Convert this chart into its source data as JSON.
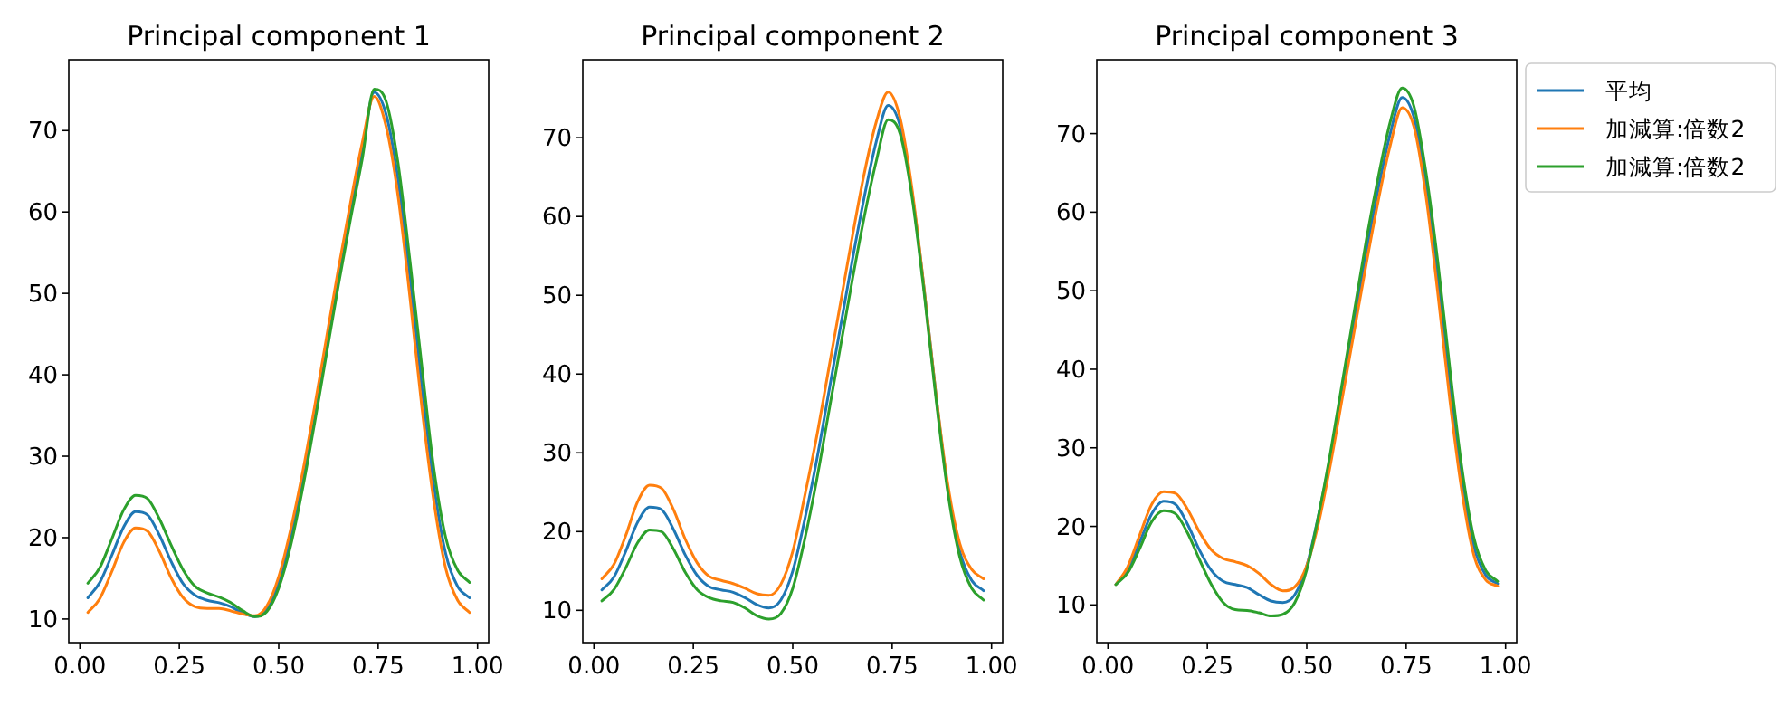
{
  "chart_data": [
    {
      "type": "line",
      "title": "Principal component 1",
      "x": [
        0.02,
        0.05,
        0.08,
        0.11,
        0.14,
        0.17,
        0.2,
        0.23,
        0.26,
        0.29,
        0.32,
        0.35,
        0.38,
        0.41,
        0.44,
        0.47,
        0.5,
        0.53,
        0.56,
        0.59,
        0.62,
        0.65,
        0.68,
        0.71,
        0.74,
        0.77,
        0.8,
        0.83,
        0.86,
        0.89,
        0.92,
        0.95,
        0.98
      ],
      "series": [
        {
          "color": "#1f77b4",
          "values": [
            12.6,
            14.5,
            17.8,
            21.3,
            23.2,
            22.8,
            20.3,
            17,
            14.3,
            12.9,
            12.3,
            12,
            11.5,
            10.7,
            10.3,
            11.2,
            14.5,
            20,
            27,
            35,
            43.5,
            52,
            60,
            67.5,
            74.7,
            72,
            64,
            52,
            38.5,
            26.5,
            18,
            14,
            12.6
          ]
        },
        {
          "color": "#ff7f0e",
          "values": [
            10.8,
            12.5,
            15.8,
            19.4,
            21.2,
            20.8,
            18.3,
            15,
            12.6,
            11.5,
            11.3,
            11.3,
            11,
            10.6,
            10.4,
            11.6,
            15.2,
            21,
            28,
            36,
            44.5,
            53,
            61,
            68.5,
            74.2,
            70.5,
            62,
            49.5,
            36,
            24.5,
            16.2,
            12.3,
            10.8
          ]
        },
        {
          "color": "#2ca02c",
          "values": [
            14.4,
            16.3,
            19.8,
            23.4,
            25.2,
            24.8,
            22.3,
            19,
            16,
            14,
            13.2,
            12.7,
            12,
            11,
            10.3,
            10.9,
            13.8,
            19,
            26,
            34,
            42.5,
            51,
            59,
            66.5,
            75.1,
            73.6,
            66,
            54,
            41,
            28.5,
            20,
            16,
            14.5
          ]
        }
      ],
      "xlim": [
        -0.028,
        1.028
      ],
      "ylim": [
        7.1,
        78.7
      ],
      "xticks": [
        {
          "value": 0,
          "label": "0.00"
        },
        {
          "value": 0.25,
          "label": "0.25"
        },
        {
          "value": 0.5,
          "label": "0.50"
        },
        {
          "value": 0.75,
          "label": "0.75"
        },
        {
          "value": 1,
          "label": "1.00"
        }
      ],
      "yticks": [
        10,
        20,
        30,
        40,
        50,
        60,
        70
      ]
    },
    {
      "type": "line",
      "title": "Principal component 2",
      "x": [
        0.02,
        0.05,
        0.08,
        0.11,
        0.14,
        0.17,
        0.2,
        0.23,
        0.26,
        0.29,
        0.32,
        0.35,
        0.38,
        0.41,
        0.44,
        0.47,
        0.5,
        0.53,
        0.56,
        0.59,
        0.62,
        0.65,
        0.68,
        0.71,
        0.74,
        0.77,
        0.8,
        0.83,
        0.86,
        0.89,
        0.92,
        0.95,
        0.98
      ],
      "series": [
        {
          "color": "#1f77b4",
          "values": [
            12.6,
            14.2,
            17.5,
            21.2,
            23.1,
            22.8,
            20.3,
            17,
            14.4,
            13,
            12.6,
            12.3,
            11.6,
            10.7,
            10.3,
            11.3,
            15,
            21.5,
            29,
            37.5,
            46,
            54.5,
            62.5,
            69.5,
            74.1,
            71.5,
            63,
            51,
            37.5,
            25.5,
            17.5,
            13.8,
            12.5
          ]
        },
        {
          "color": "#ff7f0e",
          "values": [
            14,
            15.8,
            19.5,
            23.8,
            25.9,
            25.5,
            22.8,
            19,
            16,
            14.3,
            13.8,
            13.4,
            12.8,
            12.1,
            11.9,
            13.3,
            17.5,
            24.5,
            32,
            40.5,
            49,
            57.5,
            65.5,
            72,
            75.8,
            72.5,
            63.5,
            51,
            37.5,
            26,
            18.5,
            15.2,
            14
          ]
        },
        {
          "color": "#2ca02c",
          "values": [
            11.2,
            12.6,
            15.4,
            18.6,
            20.2,
            20,
            17.8,
            14.8,
            12.6,
            11.6,
            11.2,
            11,
            10.3,
            9.3,
            8.9,
            9.6,
            12.8,
            19,
            26.5,
            35,
            43.5,
            52,
            60,
            67,
            72.3,
            70.5,
            62.5,
            50.5,
            37,
            25,
            16.8,
            12.8,
            11.3
          ]
        }
      ],
      "xlim": [
        -0.028,
        1.028
      ],
      "ylim": [
        5.9,
        79.9
      ],
      "xticks": [
        {
          "value": 0,
          "label": "0.00"
        },
        {
          "value": 0.25,
          "label": "0.25"
        },
        {
          "value": 0.5,
          "label": "0.50"
        },
        {
          "value": 0.75,
          "label": "0.75"
        },
        {
          "value": 1,
          "label": "1.00"
        }
      ],
      "yticks": [
        10,
        20,
        30,
        40,
        50,
        60,
        70
      ]
    },
    {
      "type": "line",
      "title": "Principal component 3",
      "legend": "top right",
      "x": [
        0.02,
        0.05,
        0.08,
        0.11,
        0.14,
        0.17,
        0.2,
        0.23,
        0.26,
        0.29,
        0.32,
        0.35,
        0.38,
        0.41,
        0.44,
        0.47,
        0.5,
        0.53,
        0.56,
        0.59,
        0.62,
        0.65,
        0.68,
        0.71,
        0.74,
        0.77,
        0.8,
        0.83,
        0.86,
        0.89,
        0.92,
        0.95,
        0.98
      ],
      "series": [
        {
          "name": "平均",
          "color": "#1f77b4",
          "values": [
            12.6,
            14.5,
            18,
            21.6,
            23.2,
            22.8,
            20.3,
            17,
            14.4,
            13,
            12.6,
            12.2,
            11.3,
            10.5,
            10.3,
            11.3,
            15,
            21.5,
            29,
            37.5,
            46.5,
            55,
            63,
            70,
            74.6,
            72,
            63.5,
            51.5,
            38,
            26,
            17.5,
            13.8,
            12.7
          ]
        },
        {
          "name": "加減算:倍数2",
          "color": "#ff7f0e",
          "values": [
            12.6,
            14.9,
            18.9,
            22.8,
            24.4,
            24.2,
            22.2,
            19.3,
            17,
            15.9,
            15.5,
            15,
            14,
            12.6,
            11.8,
            12.3,
            15,
            20.5,
            28,
            36.5,
            45,
            53.5,
            61.5,
            68.5,
            73.3,
            70.8,
            62,
            49.5,
            36,
            24.5,
            16.4,
            13.2,
            12.4
          ]
        },
        {
          "name": "加減算:倍数2",
          "color": "#2ca02c",
          "values": [
            12.6,
            14.1,
            17.2,
            20.6,
            22,
            21.6,
            19.2,
            15.8,
            12.6,
            10.3,
            9.4,
            9.3,
            9,
            8.6,
            8.8,
            10.3,
            14.5,
            21.5,
            29.5,
            38.5,
            47.5,
            56.5,
            64.5,
            71.5,
            75.8,
            73.4,
            65,
            53.5,
            40,
            27.5,
            18.6,
            14.4,
            13
          ]
        }
      ],
      "xlim": [
        -0.028,
        1.028
      ],
      "ylim": [
        5.2,
        79.4
      ],
      "xticks": [
        {
          "value": 0,
          "label": "0.00"
        },
        {
          "value": 0.25,
          "label": "0.25"
        },
        {
          "value": 0.5,
          "label": "0.50"
        },
        {
          "value": 0.75,
          "label": "0.75"
        },
        {
          "value": 1,
          "label": "1.00"
        }
      ],
      "yticks": [
        10,
        20,
        30,
        40,
        50,
        60,
        70
      ]
    }
  ]
}
